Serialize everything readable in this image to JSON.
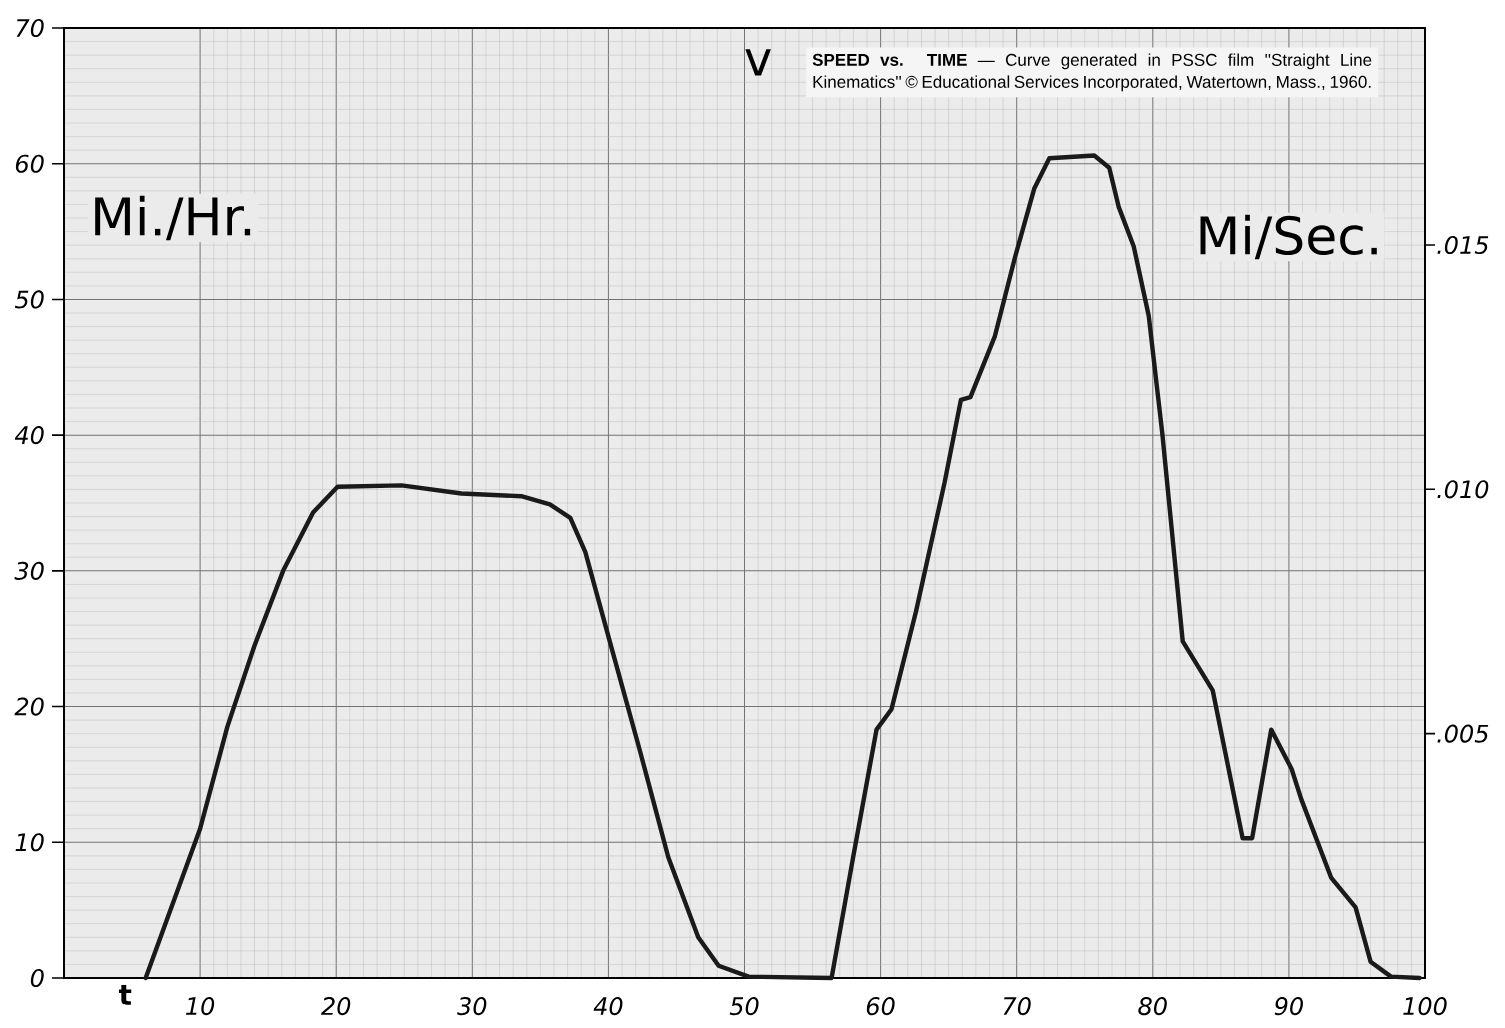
{
  "chart_data": {
    "type": "line",
    "title": "v",
    "xlabel": "t",
    "ylabel": "Mi./Hr.",
    "y2label": "Mi/Sec.",
    "annotations": [
      "**SPEED vs. TIME** — Curve generated in PSSC film ''Straight Line Kinematics'' © Educational Services Incorporated, Watertown, Mass., 1960."
    ],
    "series": [
      {
        "color": "#1a1a1a",
        "x": [
          6.0,
          8.0,
          10.0,
          12.0,
          14.0,
          16.1,
          18.3,
          20.1,
          24.8,
          29.2,
          33.6,
          35.7,
          37.2,
          38.3,
          40.1,
          42.3,
          44.4,
          46.6,
          48.1,
          50.3,
          56.4,
          58.0,
          59.7,
          60.8,
          62.6,
          64.7,
          65.9,
          66.6,
          68.4,
          69.9,
          71.3,
          72.4,
          75.7,
          76.8,
          77.5,
          78.6,
          79.7,
          80.7,
          82.2,
          84.4,
          86.6,
          87.3,
          88.7,
          90.2,
          90.9,
          93.1,
          94.9,
          96.0,
          97.5,
          99.6
        ],
        "values": [
          0,
          5.5,
          11,
          18.5,
          24.5,
          30,
          34.3,
          36.2,
          36.3,
          35.7,
          35.5,
          34.9,
          33.9,
          31.4,
          24.8,
          16.8,
          8.9,
          3.0,
          0.9,
          0.1,
          0,
          9,
          18.3,
          19.8,
          27,
          36.5,
          42.6,
          42.8,
          47.3,
          53.2,
          58.2,
          60.4,
          60.6,
          59.7,
          56.8,
          53.9,
          48.8,
          40.1,
          24.8,
          21.2,
          10.3,
          10.3,
          18.3,
          15.4,
          13.2,
          7.4,
          5.2,
          1.2,
          0.1,
          0
        ]
      }
    ],
    "xlim": [
      0,
      100
    ],
    "xticks": [
      10,
      20,
      30,
      40,
      50,
      60,
      70,
      80,
      90,
      100
    ],
    "ylim": [
      0,
      70
    ],
    "yticks": [
      0,
      10,
      20,
      30,
      40,
      50,
      60,
      70
    ],
    "y2lim": [
      0,
      0.01944
    ],
    "y2ticks": [
      {
        "value": 0.005,
        "label": ".005"
      },
      {
        "value": 0.01,
        "label": ".010"
      },
      {
        "value": 0.015,
        "label": ".015"
      }
    ],
    "grid": true
  }
}
